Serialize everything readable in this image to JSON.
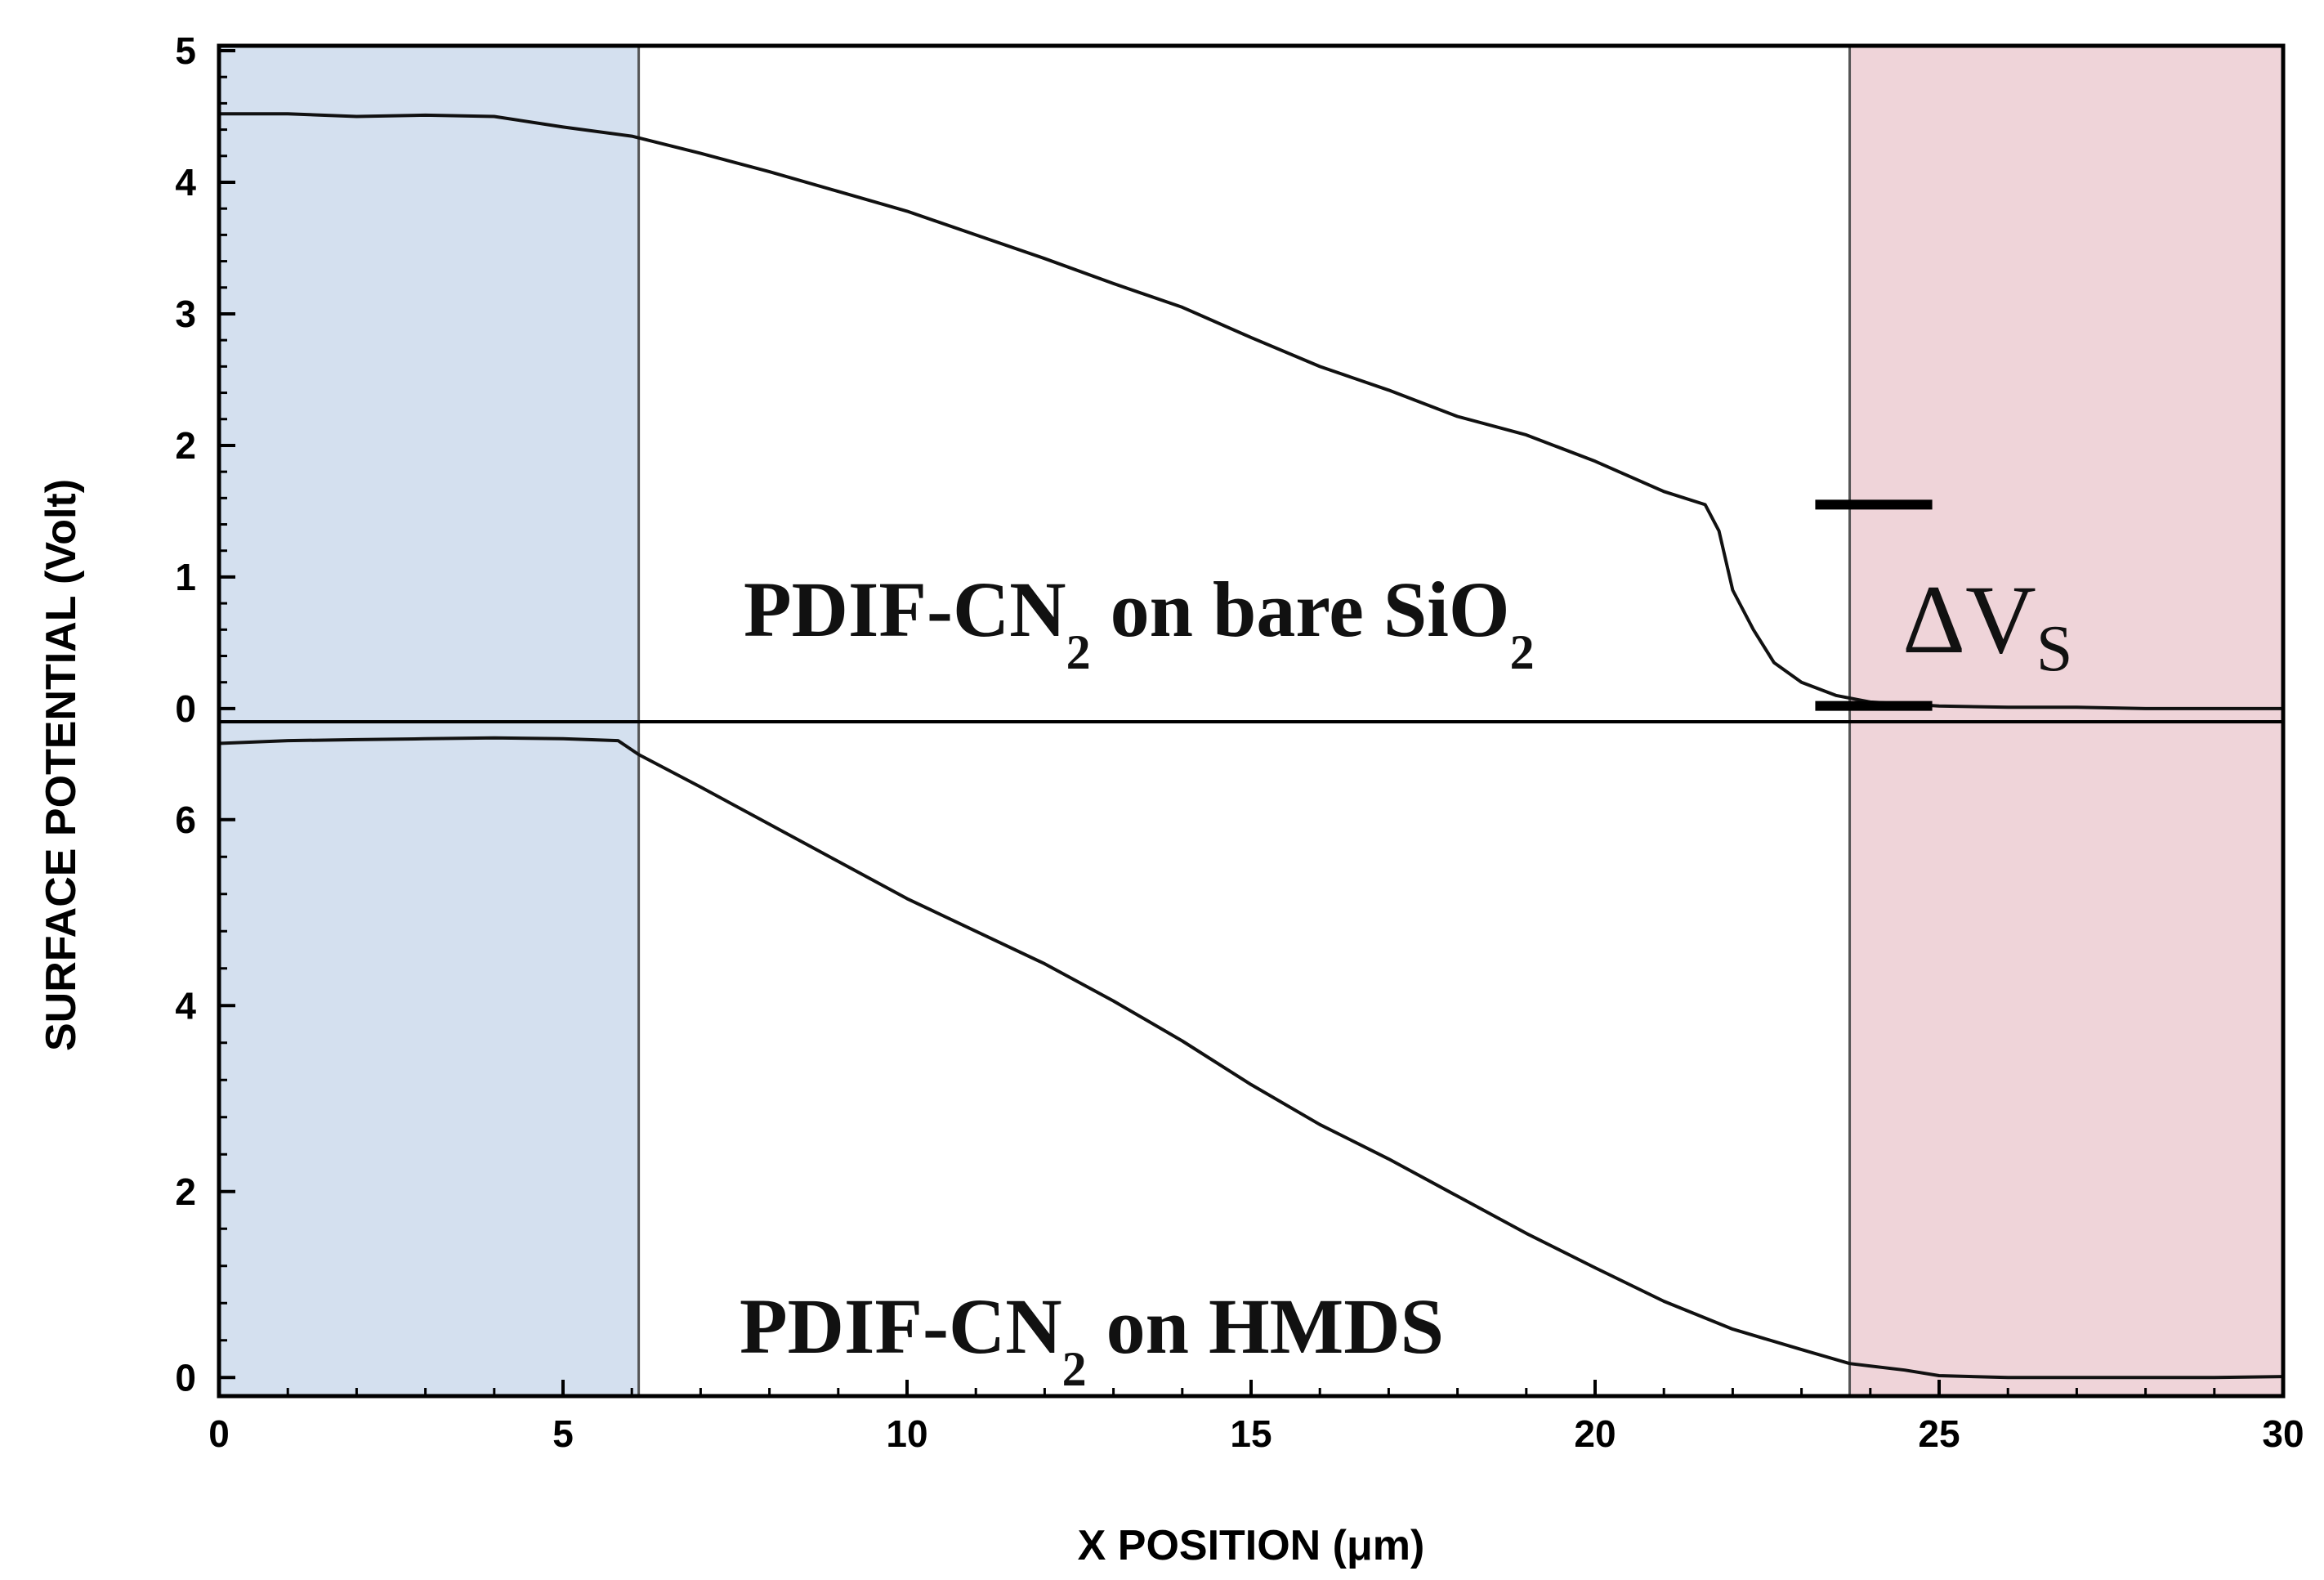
{
  "chart_data": {
    "type": "line",
    "xlabel": "X POSITION (μm)",
    "ylabel": "SURFACE POTENTIAL (Volt)",
    "xlim": [
      0,
      30
    ],
    "xticks": [
      "0",
      "5",
      "10",
      "15",
      "20",
      "25",
      "30"
    ],
    "shaded_regions": [
      {
        "name": "left-electrode",
        "x_range": [
          0,
          6.1
        ],
        "color": "#d4e0ef"
      },
      {
        "name": "right-electrode",
        "x_range": [
          23.7,
          30
        ],
        "color": "#efd4d9"
      }
    ],
    "panels": [
      {
        "name": "top",
        "ylim": [
          -0.1,
          5
        ],
        "yticks": [
          "0",
          "1",
          "2",
          "3",
          "4",
          "5"
        ],
        "series": [
          {
            "name": "PDIF-CN2 on bare SiO2",
            "x": [
              0,
              1,
              2,
              3,
              4,
              5,
              6,
              7,
              8,
              9,
              10,
              11,
              12,
              13,
              14,
              15,
              16,
              17,
              18,
              19,
              20,
              21,
              21.6,
              21.8,
              22.0,
              22.3,
              22.6,
              23.0,
              23.5,
              24,
              25,
              26,
              27,
              28,
              29,
              30
            ],
            "y": [
              4.52,
              4.52,
              4.5,
              4.51,
              4.5,
              4.42,
              4.35,
              4.22,
              4.08,
              3.93,
              3.78,
              3.6,
              3.42,
              3.23,
              3.05,
              2.82,
              2.6,
              2.42,
              2.22,
              2.08,
              1.88,
              1.65,
              1.55,
              1.35,
              0.9,
              0.6,
              0.35,
              0.2,
              0.1,
              0.05,
              0.02,
              0.01,
              0.01,
              0.0,
              0.0,
              0.0
            ]
          }
        ],
        "annotations": [
          {
            "text_main": "PDIF-CN",
            "text_sub": "2",
            "text_rest": " on bare SiO",
            "text_sub2": "2"
          },
          {
            "text_main": "ΔV",
            "text_sub": "S",
            "marker_upper_y": 1.55,
            "marker_lower_y": 0.02,
            "marker_x_range": [
              23.2,
              24.9
            ]
          }
        ]
      },
      {
        "name": "bottom",
        "ylim": [
          -0.2,
          7.0
        ],
        "yticks": [
          "0",
          "2",
          "4",
          "6"
        ],
        "series": [
          {
            "name": "PDIF-CN2 on HMDS",
            "x": [
              0,
              1,
              2,
              3,
              4,
              5,
              5.8,
              6.1,
              7,
              8,
              9,
              10,
              11,
              12,
              13,
              14,
              15,
              16,
              17,
              18,
              19,
              20,
              21,
              22,
              23,
              23.7,
              24.5,
              25,
              26,
              27,
              28,
              29,
              30
            ],
            "y": [
              6.82,
              6.85,
              6.86,
              6.87,
              6.88,
              6.87,
              6.85,
              6.7,
              6.35,
              5.95,
              5.55,
              5.15,
              4.8,
              4.45,
              4.05,
              3.62,
              3.15,
              2.72,
              2.35,
              1.95,
              1.55,
              1.18,
              0.82,
              0.52,
              0.3,
              0.15,
              0.08,
              0.02,
              0.0,
              0.0,
              0.0,
              0.0,
              0.01
            ]
          }
        ],
        "annotations": [
          {
            "text_main": "PDIF-CN",
            "text_sub": "2",
            "text_rest": " on HMDS"
          }
        ]
      }
    ]
  }
}
